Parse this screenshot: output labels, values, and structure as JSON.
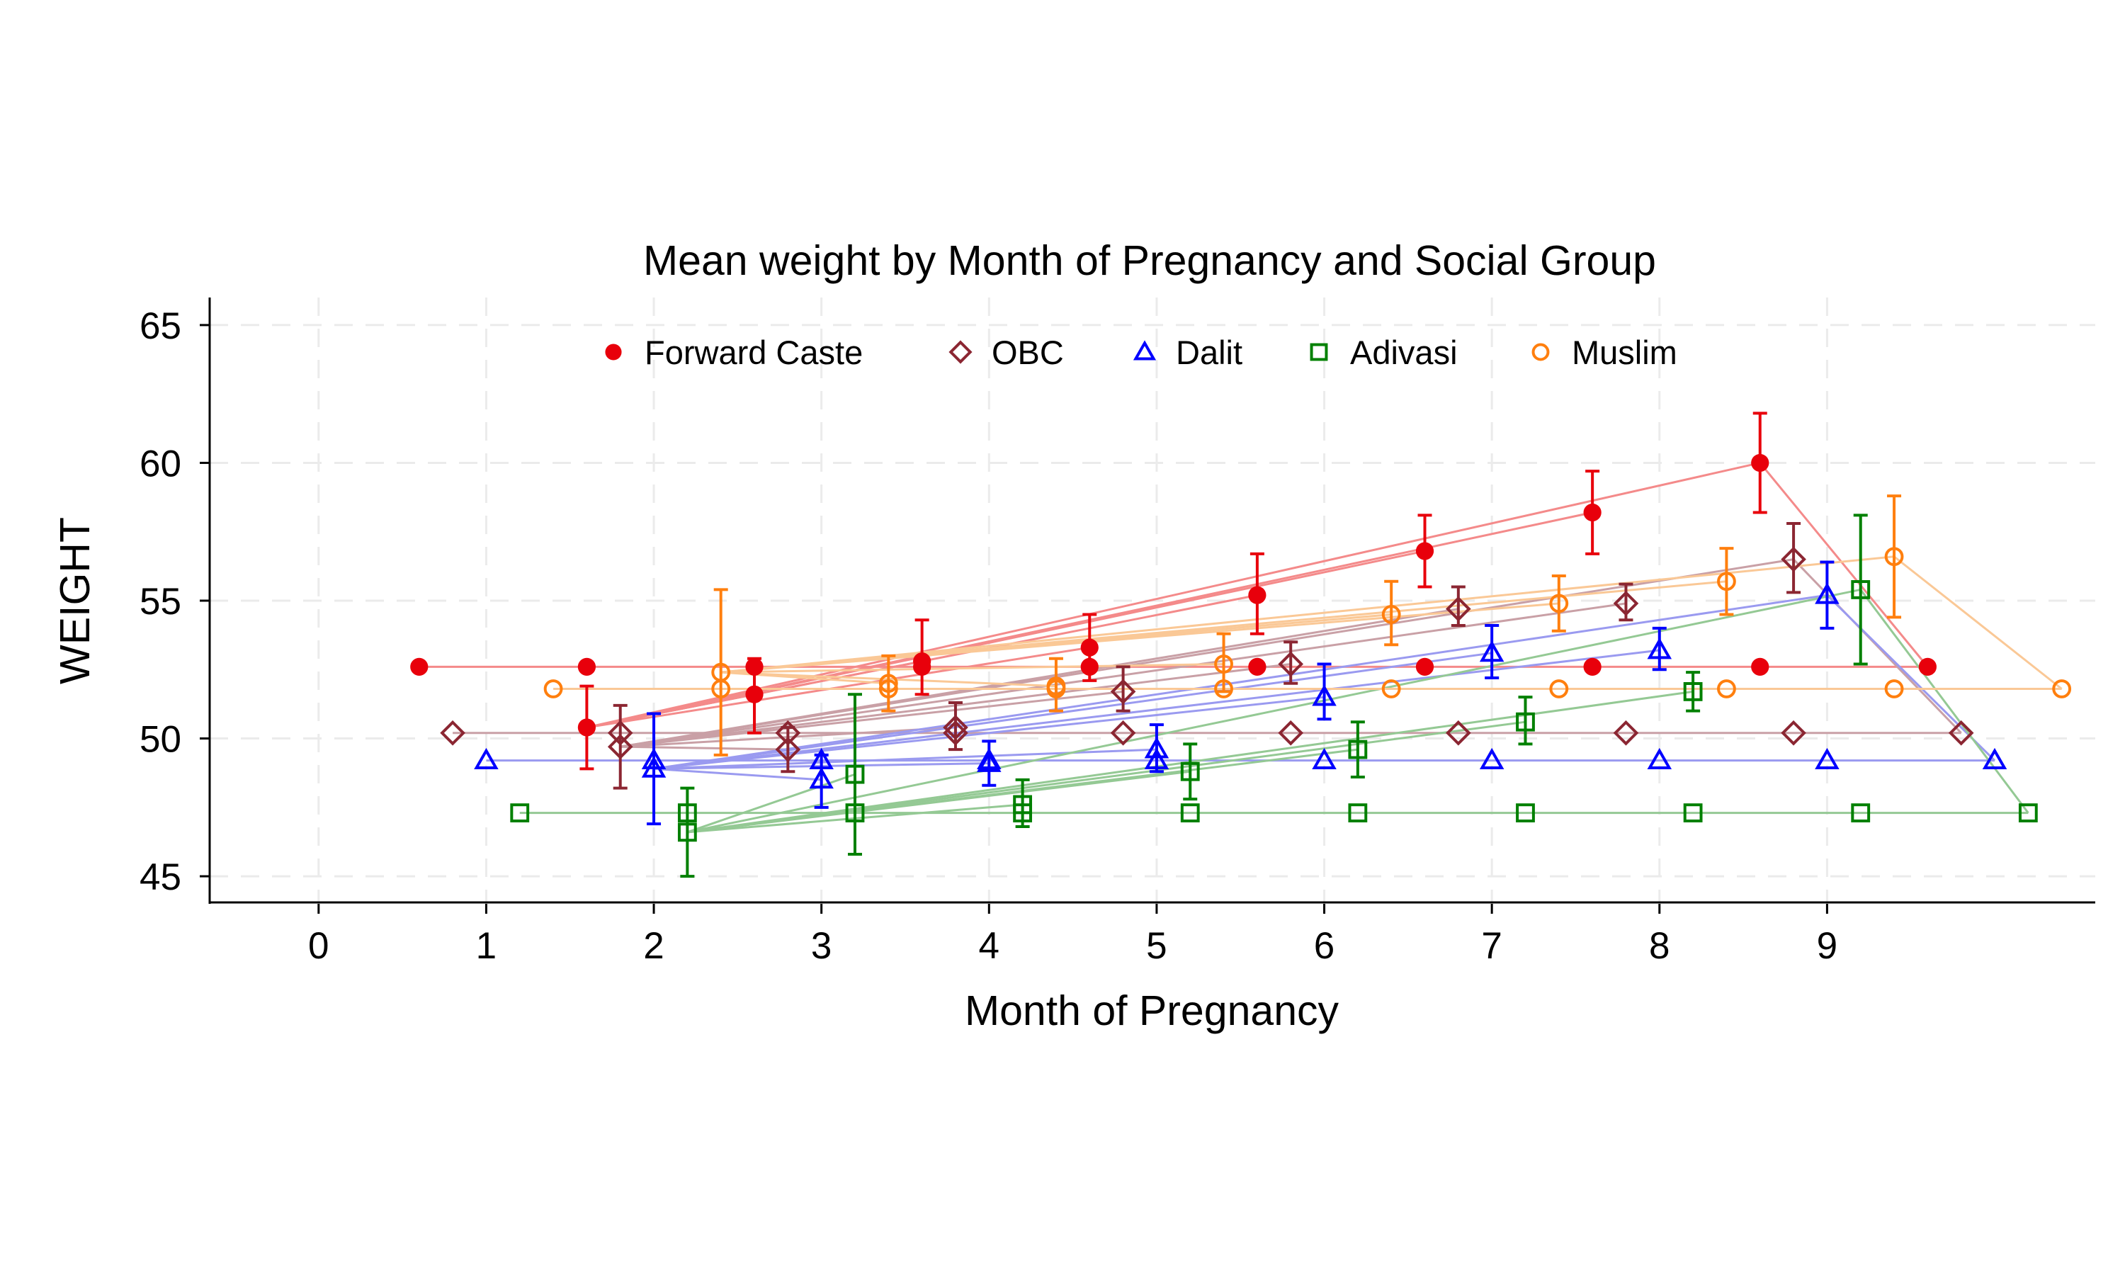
{
  "chart_data": {
    "type": "scatter",
    "title": "Mean weight by Month of Pregnancy and Social Group",
    "xlabel": "Month of Pregnancy",
    "ylabel": "WEIGHT",
    "xlim": [
      -0.65,
      10.6
    ],
    "ylim": [
      44.0,
      66.0
    ],
    "x_ticks": [
      "0",
      "1",
      "2",
      "3",
      "4",
      "5",
      "6",
      "7",
      "8",
      "9"
    ],
    "y_ticks": [
      "45",
      "50",
      "55",
      "60",
      "65"
    ],
    "grid": true,
    "legend_position": "top-center",
    "series": [
      {
        "name": "Forward Caste",
        "color": "#e8000b",
        "line_color": "#f48a8a",
        "marker": "filled-circle",
        "means": [
          {
            "x": 1.6,
            "y": 50.4,
            "lo": 48.9,
            "hi": 51.9
          },
          {
            "x": 2.6,
            "y": 51.6,
            "lo": 50.2,
            "hi": 52.9
          },
          {
            "x": 3.6,
            "y": 52.8,
            "lo": 51.6,
            "hi": 54.3
          },
          {
            "x": 4.6,
            "y": 53.3,
            "lo": 52.1,
            "hi": 54.5
          },
          {
            "x": 5.6,
            "y": 55.2,
            "lo": 53.8,
            "hi": 56.7
          },
          {
            "x": 6.6,
            "y": 56.8,
            "lo": 55.5,
            "hi": 58.1
          },
          {
            "x": 7.6,
            "y": 58.2,
            "lo": 56.7,
            "hi": 59.7
          },
          {
            "x": 8.6,
            "y": 60.0,
            "lo": 58.2,
            "hi": 61.8
          }
        ],
        "baseline": {
          "y": 52.6,
          "x": [
            0.6,
            1.6,
            2.6,
            3.6,
            4.6,
            5.6,
            6.6,
            7.6,
            8.6,
            9.6
          ]
        }
      },
      {
        "name": "OBC",
        "color": "#8b2632",
        "line_color": "#c9a0a6",
        "marker": "hollow-diamond",
        "means": [
          {
            "x": 1.8,
            "y": 49.7,
            "lo": 48.2,
            "hi": 51.2
          },
          {
            "x": 2.8,
            "y": 49.6,
            "lo": 48.8,
            "hi": 50.4
          },
          {
            "x": 3.8,
            "y": 50.4,
            "lo": 49.6,
            "hi": 51.3
          },
          {
            "x": 4.8,
            "y": 51.7,
            "lo": 51.0,
            "hi": 52.6
          },
          {
            "x": 5.8,
            "y": 52.7,
            "lo": 52.0,
            "hi": 53.5
          },
          {
            "x": 6.8,
            "y": 54.7,
            "lo": 54.1,
            "hi": 55.5
          },
          {
            "x": 7.8,
            "y": 54.9,
            "lo": 54.3,
            "hi": 55.6
          },
          {
            "x": 8.8,
            "y": 56.5,
            "lo": 55.3,
            "hi": 57.8
          }
        ],
        "baseline": {
          "y": 50.2,
          "x": [
            0.8,
            1.8,
            2.8,
            3.8,
            4.8,
            5.8,
            6.8,
            7.8,
            8.8,
            9.8
          ]
        }
      },
      {
        "name": "Dalit",
        "color": "#0000ff",
        "line_color": "#9a9af0",
        "marker": "hollow-triangle",
        "means": [
          {
            "x": 2.0,
            "y": 48.9,
            "lo": 46.9,
            "hi": 50.9
          },
          {
            "x": 3.0,
            "y": 48.5,
            "lo": 47.5,
            "hi": 49.4
          },
          {
            "x": 4.0,
            "y": 49.1,
            "lo": 48.3,
            "hi": 49.9
          },
          {
            "x": 5.0,
            "y": 49.6,
            "lo": 48.8,
            "hi": 50.5
          },
          {
            "x": 6.0,
            "y": 51.5,
            "lo": 50.7,
            "hi": 52.7
          },
          {
            "x": 7.0,
            "y": 53.1,
            "lo": 52.2,
            "hi": 54.1
          },
          {
            "x": 8.0,
            "y": 53.2,
            "lo": 52.5,
            "hi": 54.0
          },
          {
            "x": 9.0,
            "y": 55.2,
            "lo": 54.0,
            "hi": 56.4
          }
        ],
        "baseline": {
          "y": 49.2,
          "x": [
            1.0,
            2.0,
            3.0,
            4.0,
            5.0,
            6.0,
            7.0,
            8.0,
            9.0,
            10.0
          ]
        }
      },
      {
        "name": "Adivasi",
        "color": "#008000",
        "line_color": "#94c994",
        "marker": "hollow-square",
        "means": [
          {
            "x": 2.2,
            "y": 46.6,
            "lo": 45.0,
            "hi": 48.2
          },
          {
            "x": 3.2,
            "y": 48.7,
            "lo": 45.8,
            "hi": 51.6
          },
          {
            "x": 4.2,
            "y": 47.6,
            "lo": 46.8,
            "hi": 48.5
          },
          {
            "x": 5.2,
            "y": 48.8,
            "lo": 47.8,
            "hi": 49.8
          },
          {
            "x": 6.2,
            "y": 49.6,
            "lo": 48.6,
            "hi": 50.6
          },
          {
            "x": 7.2,
            "y": 50.6,
            "lo": 49.8,
            "hi": 51.5
          },
          {
            "x": 8.2,
            "y": 51.7,
            "lo": 51.0,
            "hi": 52.4
          },
          {
            "x": 9.2,
            "y": 55.4,
            "lo": 52.7,
            "hi": 58.1
          }
        ],
        "baseline": {
          "y": 47.3,
          "x": [
            1.2,
            2.2,
            3.2,
            4.2,
            5.2,
            6.2,
            7.2,
            8.2,
            9.2,
            10.2
          ]
        }
      },
      {
        "name": "Muslim",
        "color": "#ff7f0e",
        "line_color": "#fac896",
        "marker": "hollow-circle",
        "means": [
          {
            "x": 2.4,
            "y": 52.4,
            "lo": 49.4,
            "hi": 55.4
          },
          {
            "x": 3.4,
            "y": 52.0,
            "lo": 51.0,
            "hi": 53.0
          },
          {
            "x": 4.4,
            "y": 51.9,
            "lo": 51.0,
            "hi": 52.9
          },
          {
            "x": 5.4,
            "y": 52.7,
            "lo": 51.7,
            "hi": 53.8
          },
          {
            "x": 6.4,
            "y": 54.5,
            "lo": 53.4,
            "hi": 55.7
          },
          {
            "x": 7.4,
            "y": 54.9,
            "lo": 53.9,
            "hi": 55.9
          },
          {
            "x": 8.4,
            "y": 55.7,
            "lo": 54.5,
            "hi": 56.9
          },
          {
            "x": 9.4,
            "y": 56.6,
            "lo": 54.4,
            "hi": 58.8
          }
        ],
        "baseline": {
          "y": 51.8,
          "x": [
            1.4,
            2.4,
            3.4,
            4.4,
            5.4,
            6.4,
            7.4,
            8.4,
            9.4,
            10.4
          ]
        }
      }
    ]
  }
}
